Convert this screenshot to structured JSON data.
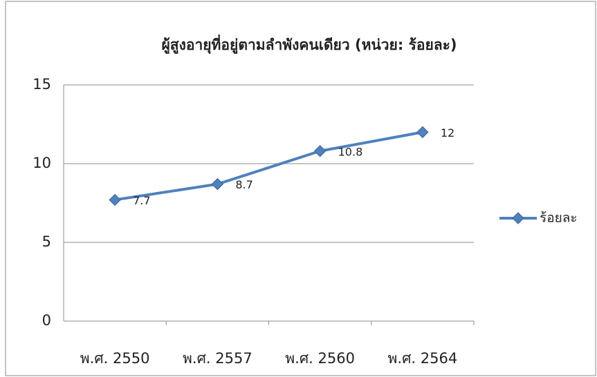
{
  "chart_data": {
    "type": "line",
    "title": "ผู้สูงอายุที่อยู่ตามลำพังคนเดียว (หน่วย: ร้อยละ)",
    "categories": [
      "พ.ศ. 2550",
      "พ.ศ. 2557",
      "พ.ศ. 2560",
      "พ.ศ. 2564"
    ],
    "series": [
      {
        "name": "ร้อยละ",
        "color": "#4f81bd",
        "values": [
          7.7,
          8.7,
          10.8,
          12
        ]
      }
    ],
    "ylim": [
      0,
      15
    ],
    "yticks": [
      0,
      5,
      10,
      15
    ],
    "grid": true,
    "legend": "right"
  }
}
